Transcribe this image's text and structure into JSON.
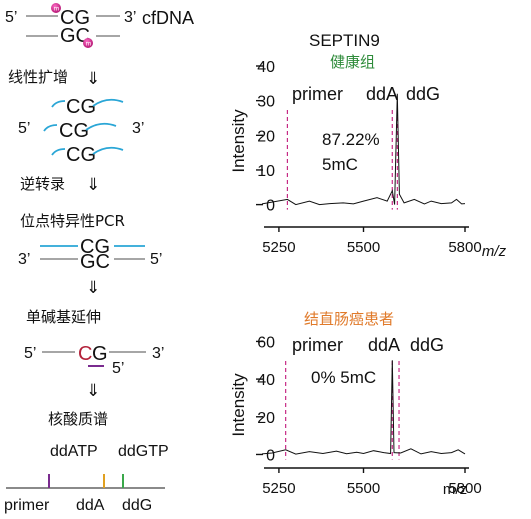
{
  "workflow": {
    "cfdna": {
      "p5": "5’",
      "p3": "3’",
      "top": "CG",
      "bottom": "GC",
      "label": "cfDNA",
      "marker": "m"
    },
    "step1": {
      "label": "线性扩增",
      "arrow": "⇓"
    },
    "amplified": {
      "p5": "5’",
      "p3": "3’",
      "strands": [
        "CG",
        "CG",
        "CG"
      ]
    },
    "step2": {
      "label": "逆转录",
      "arrow": "⇓"
    },
    "step3": {
      "label": "位点特异性PCR",
      "arrow": "⇓"
    },
    "pcr": {
      "p3": "3’",
      "p5": "5’",
      "top": "CG",
      "bottom": "GC"
    },
    "step4": {
      "label": "单碱基延伸",
      "arrow": "⇓"
    },
    "sbe": {
      "p5": "5’",
      "p3": "3’",
      "c": "C",
      "g": "G",
      "p5b": "5’"
    },
    "step5": {
      "label": "核酸质谱",
      "arrow": "⇓"
    },
    "ms": {
      "ddatp": "ddATP",
      "ddgtp": "ddGTP",
      "primer": "primer",
      "dda": "ddA",
      "ddg": "ddG"
    },
    "colors": {
      "strand": "#9a9a9a",
      "probe": "#2aa6d6",
      "methyl": "#c0187a",
      "primer_line": "#7a2b8f",
      "dda_line": "#e0a020",
      "ddg_line": "#3aa84a",
      "c_red": "#b3223a"
    }
  },
  "gene_title": "SEPTIN9",
  "chart_data": [
    {
      "type": "line",
      "title": "健康组",
      "title_color": "#2e8b3a",
      "ylabel": "Intensity",
      "xlabel": "m/z",
      "xlim": [
        5200,
        5800
      ],
      "ylim": [
        -3,
        40
      ],
      "xticks": [
        5250,
        5500,
        5800
      ],
      "yticks": [
        0,
        10,
        20,
        30,
        40
      ],
      "labels": {
        "primer": "primer",
        "dda": "ddA",
        "ddg": "ddG"
      },
      "marker_lines": [
        5275,
        5585,
        5600
      ],
      "annotation": [
        "87.22%",
        "5mC"
      ],
      "series": [
        {
          "x": [
            5200,
            5275,
            5300,
            5340,
            5370,
            5400,
            5440,
            5470,
            5500,
            5540,
            5570,
            5585,
            5592,
            5600,
            5606,
            5620,
            5650,
            5680,
            5700,
            5730,
            5760,
            5775,
            5790,
            5800
          ],
          "y": [
            0.2,
            1.5,
            0,
            1,
            0,
            0.3,
            0.5,
            0.2,
            1,
            2,
            1,
            4,
            0,
            32,
            3,
            0.5,
            1.5,
            0.2,
            1,
            0.3,
            0.5,
            1.5,
            0.2,
            0.3
          ]
        }
      ]
    },
    {
      "type": "line",
      "title": "结直肠癌患者",
      "title_color": "#e07a2a",
      "ylabel": "Intensity",
      "xlabel": "m/z",
      "xlim": [
        5200,
        5800
      ],
      "ylim": [
        -4,
        65
      ],
      "xticks": [
        5250,
        5500,
        5800
      ],
      "yticks": [
        0,
        20,
        40,
        60
      ],
      "labels": {
        "primer": "primer",
        "dda": "ddA",
        "ddg": "ddG"
      },
      "marker_lines": [
        5270,
        5585,
        5605
      ],
      "annotation": [
        "0% 5mC"
      ],
      "series": [
        {
          "x": [
            5200,
            5230,
            5270,
            5300,
            5340,
            5380,
            5420,
            5450,
            5480,
            5500,
            5530,
            5560,
            5580,
            5585,
            5590,
            5610,
            5640,
            5670,
            5700,
            5730,
            5760,
            5780,
            5800
          ],
          "y": [
            0.3,
            0.8,
            2.5,
            0.2,
            1.5,
            0.5,
            1.8,
            0.4,
            1.2,
            0.5,
            2,
            1,
            0.5,
            50,
            1,
            0.8,
            3,
            0.3,
            1.5,
            0.5,
            1,
            2.5,
            0.3
          ]
        }
      ]
    }
  ]
}
